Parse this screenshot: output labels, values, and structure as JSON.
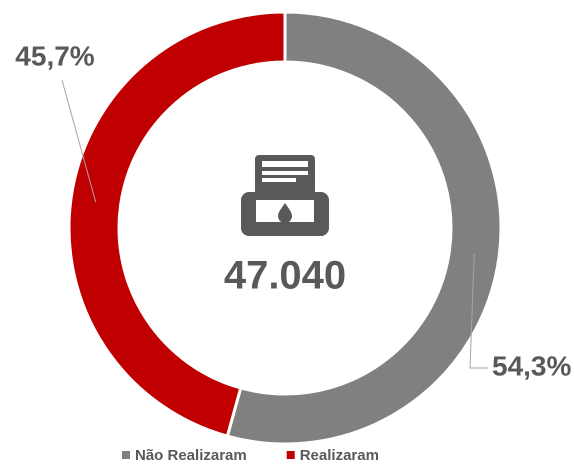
{
  "chart_data": {
    "type": "pie",
    "donut": true,
    "categories": [
      "Não Realizaram",
      "Realizaram"
    ],
    "values": [
      54.3,
      45.7
    ],
    "value_labels": [
      "54,3%",
      "45,7%"
    ],
    "colors": [
      "#808080",
      "#c00000"
    ],
    "center_label": "47.040",
    "legend": "bottom"
  }
}
